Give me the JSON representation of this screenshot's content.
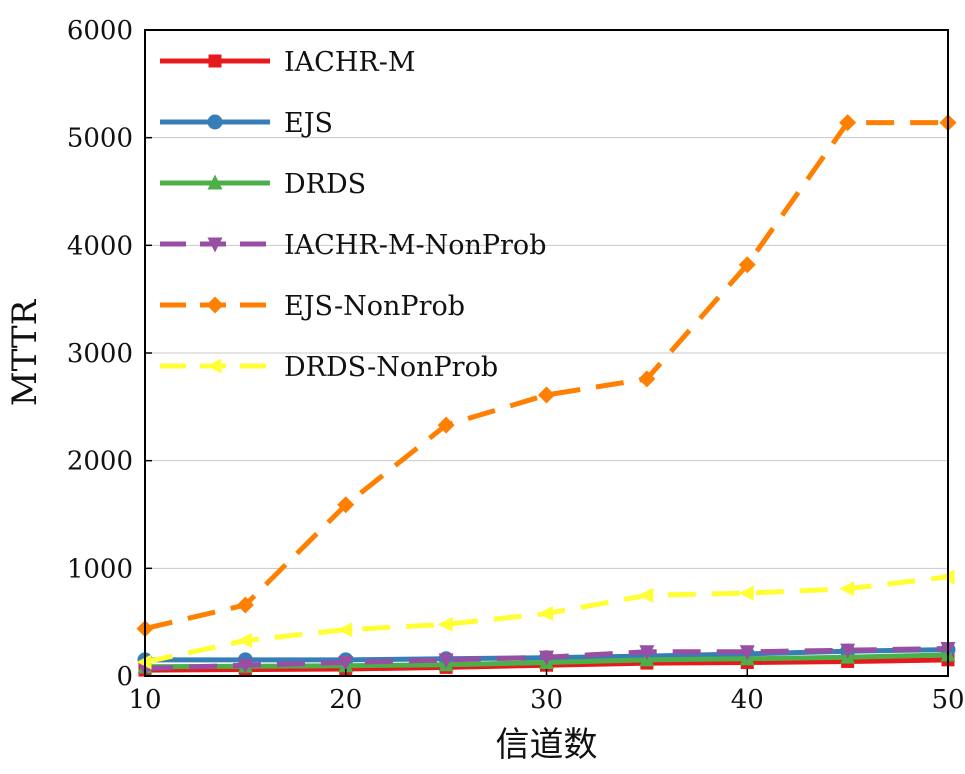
{
  "chart_data": {
    "type": "line",
    "title": "",
    "xlabel": "信道数",
    "ylabel": "MTTR",
    "xlim": [
      10,
      50
    ],
    "ylim": [
      0,
      6000
    ],
    "x": [
      10,
      15,
      20,
      25,
      30,
      35,
      40,
      45,
      50
    ],
    "xticks": [
      "10",
      "20",
      "30",
      "40",
      "50"
    ],
    "yticks": [
      "0",
      "1000",
      "2000",
      "3000",
      "4000",
      "5000",
      "6000"
    ],
    "grid": "horizontal",
    "legend_position": "top-left",
    "series": [
      {
        "name": "IACHR-M",
        "color": "#e41a1c",
        "marker": "square",
        "dashed": false,
        "values": [
          55,
          60,
          65,
          80,
          100,
          120,
          125,
          135,
          150
        ]
      },
      {
        "name": "EJS",
        "color": "#377eb8",
        "marker": "circle",
        "dashed": false,
        "values": [
          150,
          150,
          150,
          160,
          170,
          185,
          205,
          230,
          245
        ]
      },
      {
        "name": "DRDS",
        "color": "#4daf4a",
        "marker": "triangle-up",
        "dashed": false,
        "values": [
          85,
          90,
          95,
          105,
          125,
          150,
          160,
          175,
          195
        ]
      },
      {
        "name": "IACHR-M-NonProb",
        "color": "#984ea3",
        "marker": "triangle-down",
        "dashed": true,
        "values": [
          70,
          100,
          125,
          150,
          175,
          225,
          225,
          240,
          255
        ]
      },
      {
        "name": "EJS-NonProb",
        "color": "#ff7f00",
        "marker": "diamond",
        "dashed": true,
        "values": [
          440,
          660,
          1590,
          2330,
          2610,
          2760,
          3820,
          5140,
          5140
        ]
      },
      {
        "name": "DRDS-NonProb",
        "color": "#ffff33",
        "marker": "triangle-left",
        "dashed": true,
        "values": [
          130,
          330,
          430,
          480,
          580,
          750,
          770,
          810,
          920
        ]
      }
    ]
  }
}
